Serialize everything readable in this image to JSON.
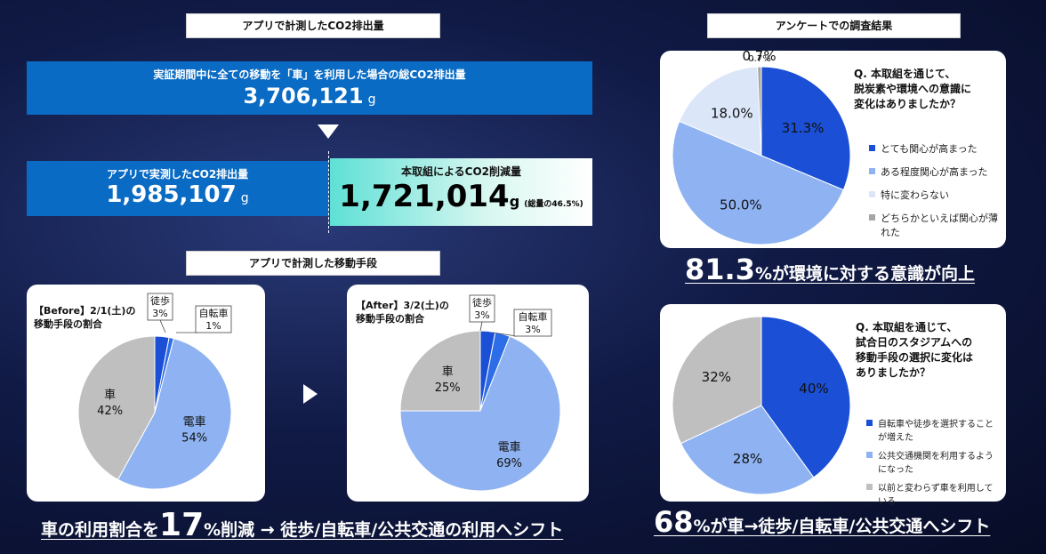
{
  "co2": {
    "header": "アプリで計測したCO2排出量",
    "total_label": "実証期間中に全ての移動を「車」を利用した場合の総CO2排出量",
    "total_value": "3,706,121",
    "unit": "g",
    "actual_label": "アプリで実測したCO2排出量",
    "actual_value": "1,985,107",
    "reduction_label": "本取組によるCO2削減量",
    "reduction_value": "1,721,014",
    "reduction_note": "(総量の46.5%)"
  },
  "transport": {
    "header": "アプリで計測した移動手段",
    "before_title": "【Before】2/1(土)の\n移動手段の割合",
    "after_title": "【After】3/2(土)の\n移動手段の割合",
    "headline_prefix": "車の利用割合を",
    "headline_number": "17",
    "headline_suffix": "%削減 → 徒歩/自転車/公共交通の利用へシフト"
  },
  "survey": {
    "header": "アンケートでの調査結果",
    "q1": "Q. 本取組を通じて、\n脱炭素や環境への意識に\n変化はありましたか？",
    "q1_headline_number": "81.3",
    "q1_headline_suffix": "%が環境に対する意識が向上",
    "q2": "Q. 本取組を通じて、\n試合日のスタジアムへの\n移動手段の選択に変化は\nありましたか？",
    "q2_headline_number": "68",
    "q2_headline_suffix": "%が車→徒歩/自転車/公共交通へシフト"
  },
  "colors": {
    "dark_blue": "#1a4fd6",
    "mid_blue": "#8fb3f2",
    "light_blue": "#dbe6f8",
    "gray": "#bfbfbf",
    "bar_blue": "#0a6bc4",
    "teal_bar": "#1aa6a6"
  },
  "chart_data": [
    {
      "type": "pie",
      "title": "【Before】2/1(土)の移動手段の割合",
      "categories": [
        "徒歩",
        "自転車",
        "電車",
        "車"
      ],
      "values": [
        3,
        1,
        54,
        42
      ],
      "labels": [
        "徒歩\n3%",
        "自転車\n1%",
        "電車\n54%",
        "車\n42%"
      ],
      "colors": [
        "#1a4fd6",
        "#2d6ee8",
        "#8fb3f2",
        "#bfbfbf"
      ]
    },
    {
      "type": "pie",
      "title": "【After】3/2(土)の移動手段の割合",
      "categories": [
        "徒歩",
        "自転車",
        "電車",
        "車"
      ],
      "values": [
        3,
        3,
        69,
        25
      ],
      "labels": [
        "徒歩\n3%",
        "自転車\n3%",
        "電車\n69%",
        "車\n25%"
      ],
      "colors": [
        "#1a4fd6",
        "#2d6ee8",
        "#8fb3f2",
        "#bfbfbf"
      ]
    },
    {
      "type": "pie",
      "title": "Q. 本取組を通じて、脱炭素や環境への意識に変化はありましたか？",
      "categories": [
        "とても関心が高まった",
        "ある程度関心が高まった",
        "特に変わらない",
        "どちらかといえば関心が薄れた"
      ],
      "values": [
        31.3,
        50.0,
        18.0,
        0.7
      ],
      "labels": [
        "31.3%",
        "50.0%",
        "18.0%",
        "0.7%"
      ],
      "colors": [
        "#1a4fd6",
        "#8fb3f2",
        "#dbe6f8",
        "#a6a6a6"
      ]
    },
    {
      "type": "pie",
      "title": "Q. 本取組を通じて、試合日のスタジアムへの移動手段の選択に変化はありましたか？",
      "categories": [
        "自転車や徒歩を選択することが増えた",
        "公共交通機関を利用するようになった",
        "以前と変わらず車を利用している"
      ],
      "values": [
        40,
        28,
        32
      ],
      "labels": [
        "40%",
        "28%",
        "32%"
      ],
      "colors": [
        "#1a4fd6",
        "#8fb3f2",
        "#bfbfbf"
      ]
    }
  ]
}
